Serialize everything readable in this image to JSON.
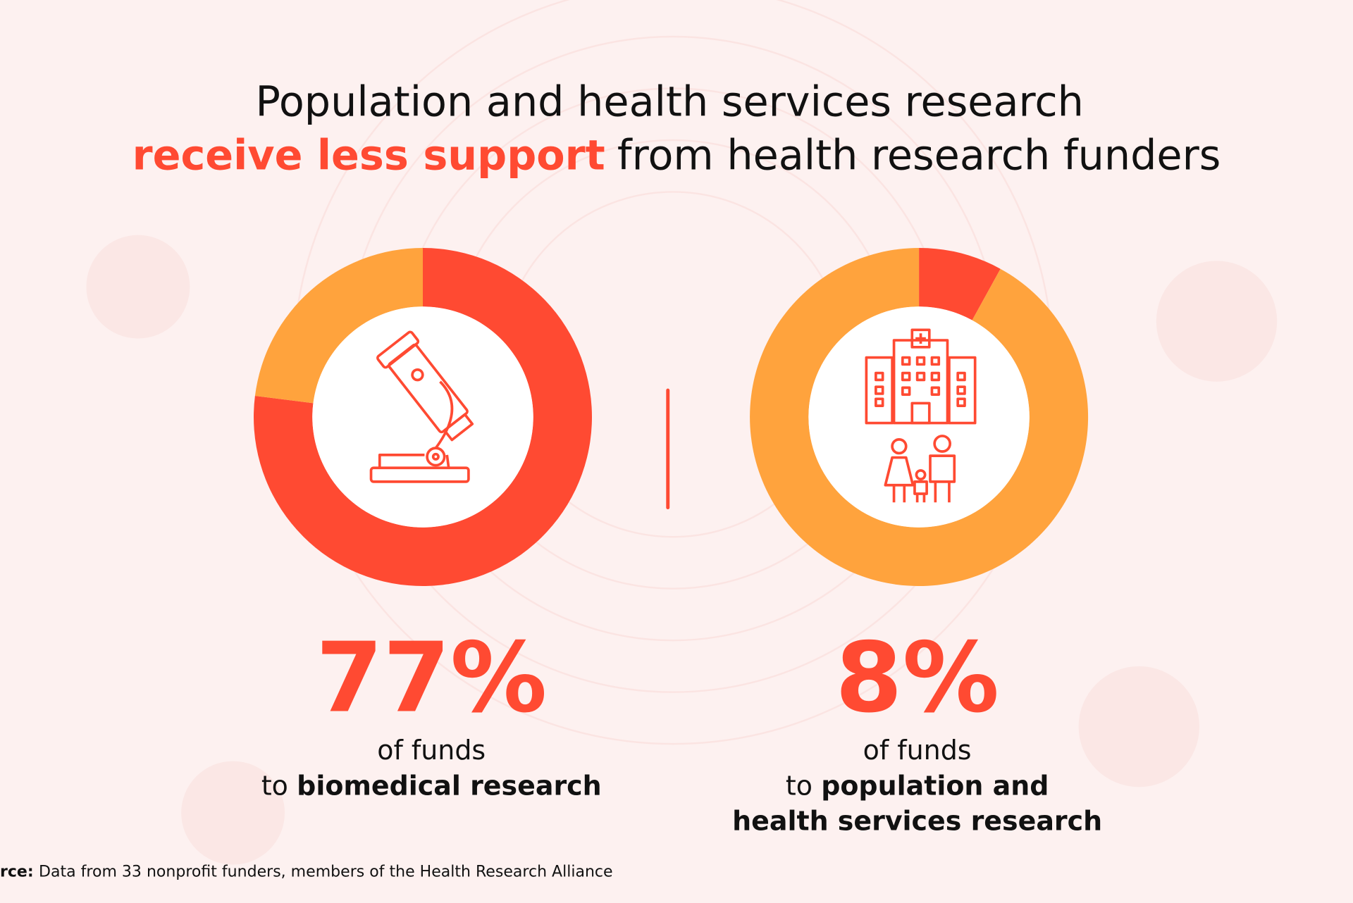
{
  "title": {
    "line1": "Population and health services research",
    "highlight": "receive less support",
    "rest": "from health research funders"
  },
  "chart_data": [
    {
      "type": "donut",
      "values": [
        77,
        23
      ],
      "colors": [
        "#ff4a32",
        "#ffa33d"
      ],
      "value_labels": [
        "77%",
        null
      ],
      "caption": {
        "line1": "of funds",
        "prefix": "to",
        "emphasis": [
          "biomedical research"
        ]
      }
    },
    {
      "type": "donut",
      "values": [
        8,
        92
      ],
      "colors": [
        "#ff4a32",
        "#ffa33d"
      ],
      "value_labels": [
        "8%",
        null
      ],
      "caption": {
        "line1": "of funds",
        "prefix": "to",
        "emphasis": [
          "population and",
          "health services research"
        ]
      }
    }
  ],
  "source": {
    "label": "rce:",
    "text": "Data from 33 nonprofit funders, members of the Health Research Alliance"
  }
}
